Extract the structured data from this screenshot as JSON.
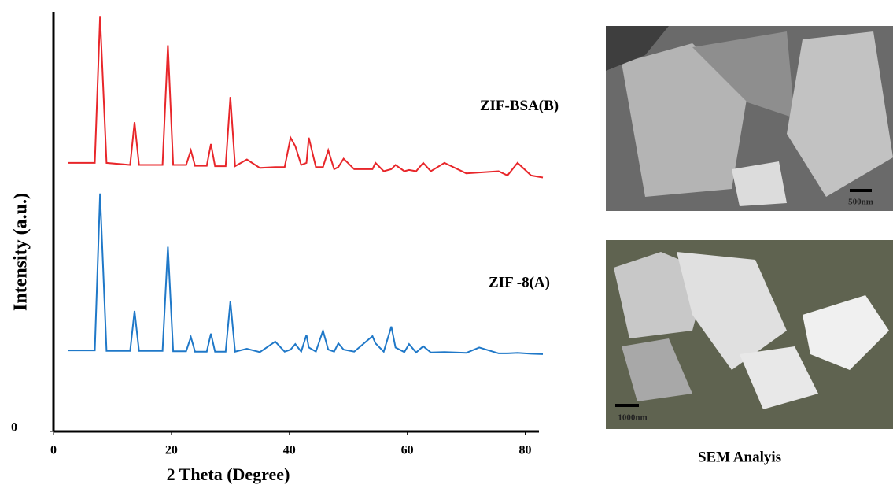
{
  "chart_data": {
    "type": "line",
    "x_label": "2 Theta (Degree)",
    "y_label": "Intensity (a.u.)",
    "x": [
      2.5,
      7,
      7.9,
      9,
      13,
      13.75,
      14.5,
      18.5,
      19.4,
      20.3,
      22.5,
      23.3,
      24,
      26,
      26.7,
      27.4,
      29.2,
      30,
      30.8,
      32.8,
      35,
      37.6,
      39.2,
      40.2,
      41,
      42,
      42.9,
      43.3,
      44.5,
      45.7,
      46.6,
      47.6,
      48.3,
      49.2,
      51,
      54.1,
      54.6,
      56,
      57.3,
      58,
      59.5,
      60.3,
      61.5,
      62.7,
      64,
      66.3,
      70,
      72.2,
      75.5,
      77,
      78.7,
      81,
      83
    ],
    "series": [
      {
        "name": "ZIF-BSA(B)",
        "color": "#e8262a",
        "values": [
          64,
          64,
          99,
          64,
          63.5,
          73.7,
          63.5,
          63.5,
          92,
          63.5,
          63.5,
          67,
          63.3,
          63.3,
          68.5,
          63.2,
          63.2,
          79.7,
          63.2,
          64.8,
          62.8,
          63,
          63,
          70,
          68,
          63.5,
          64,
          70,
          63,
          63,
          67,
          62.5,
          63,
          65,
          62.5,
          62.5,
          64,
          62,
          62.5,
          63.5,
          62,
          62.3,
          62,
          64,
          62,
          64,
          61.5,
          61.7,
          62,
          61,
          64,
          61,
          60.5
        ]
      },
      {
        "name": "ZIF -8(A)",
        "color": "#1f78c8",
        "values": [
          19.3,
          19.3,
          56.7,
          19.2,
          19.2,
          28.7,
          19.2,
          19.2,
          44,
          19.1,
          19.1,
          22.5,
          19,
          19,
          23.3,
          19,
          19,
          31,
          19,
          19.7,
          18.9,
          21.4,
          19,
          19.5,
          20.8,
          19,
          23,
          20,
          19,
          24,
          19.5,
          19,
          21,
          19.5,
          19,
          22.7,
          21,
          19,
          25,
          20,
          18.9,
          20.8,
          18.8,
          20.3,
          18.8,
          18.9,
          18.7,
          20,
          18.6,
          18.6,
          18.7,
          18.5,
          18.4
        ]
      }
    ],
    "xlim": [
      0,
      85
    ],
    "ylim": [
      0,
      100
    ],
    "xticks": [
      0,
      20,
      40,
      60,
      80
    ],
    "yticks": [
      0
    ]
  },
  "sem": {
    "caption": "SEM Analyis",
    "images": [
      {
        "scale": "500nm"
      },
      {
        "scale": "1000nm"
      }
    ]
  }
}
